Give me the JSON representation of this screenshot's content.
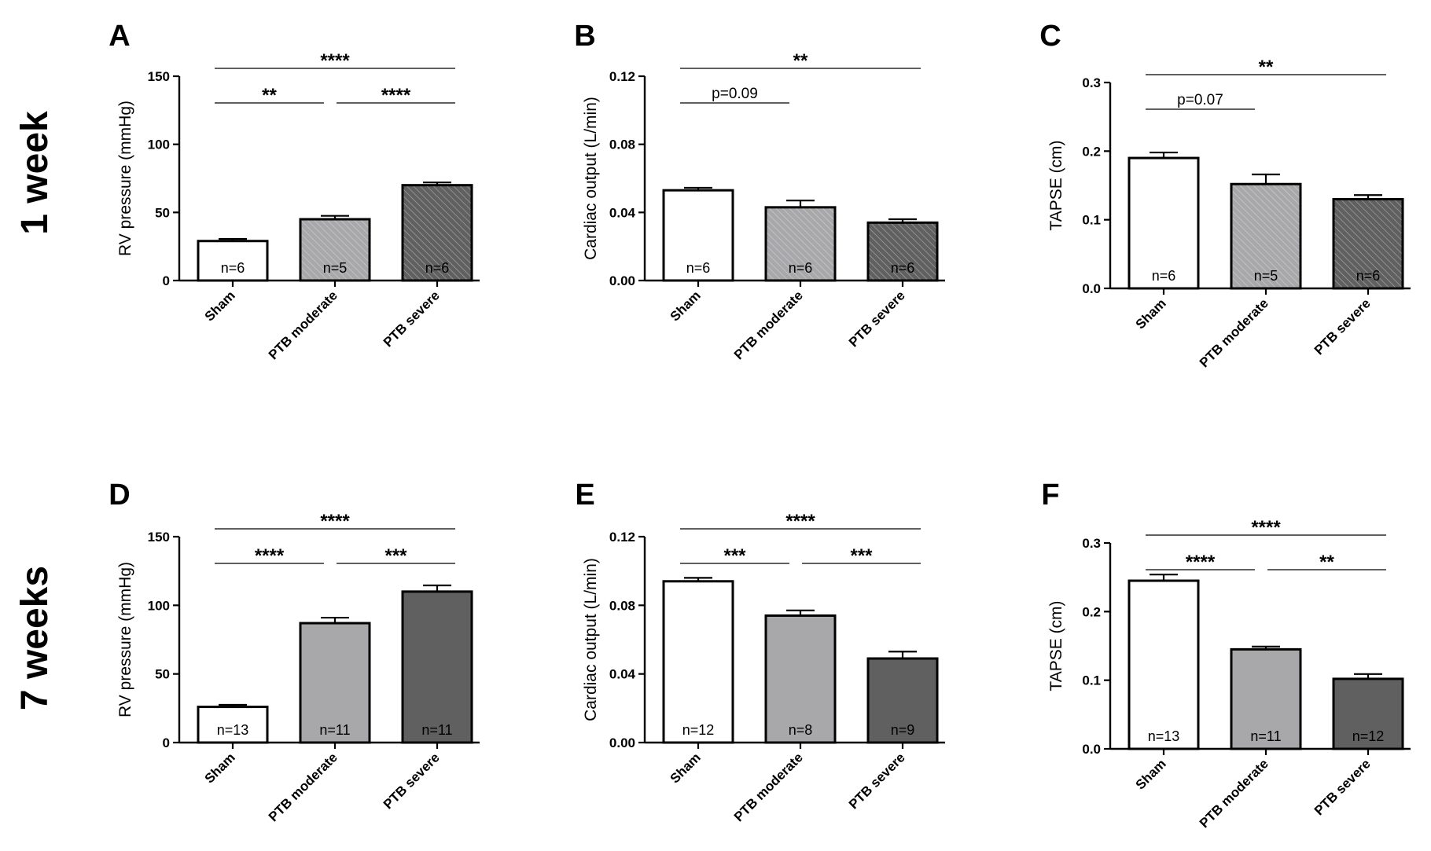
{
  "rows": [
    {
      "label": "1 week"
    },
    {
      "label": "7 weeks"
    }
  ],
  "colors": {
    "sham": "#ffffff",
    "moderate": "#a8a8ab",
    "severe": "#606060",
    "axis": "#000000",
    "hatch": "#ffffff"
  },
  "chart_data": [
    {
      "letter": "A",
      "type": "bar",
      "hatched": true,
      "categories": [
        "Sham",
        "PTB moderate",
        "PTB severe"
      ],
      "values": [
        29,
        45,
        70
      ],
      "errors": [
        1.5,
        2.5,
        2
      ],
      "n_labels": [
        "n=6",
        "n=5",
        "n=6"
      ],
      "ylabel": "RV pressure (mmHg)",
      "ylim": [
        0,
        150
      ],
      "yticks": [
        0,
        50,
        100,
        150
      ],
      "ytick_labels": [
        "0",
        "50",
        "100",
        "150"
      ],
      "comparisons": [
        {
          "from": 0,
          "to": 2,
          "label": "****",
          "level": 2
        },
        {
          "from": 0,
          "to": 1,
          "label": "**",
          "level": 1
        },
        {
          "from": 1,
          "to": 2,
          "label": "****",
          "level": 1
        }
      ]
    },
    {
      "letter": "B",
      "type": "bar",
      "hatched": true,
      "categories": [
        "Sham",
        "PTB moderate",
        "PTB severe"
      ],
      "values": [
        0.053,
        0.043,
        0.034
      ],
      "errors": [
        0.0015,
        0.004,
        0.002
      ],
      "n_labels": [
        "n=6",
        "n=6",
        "n=6"
      ],
      "ylabel": "Cardiac output (L/min)",
      "ylim": [
        0,
        0.12
      ],
      "yticks": [
        0,
        0.04,
        0.08,
        0.12
      ],
      "ytick_labels": [
        "0.00",
        "0.04",
        "0.08",
        "0.12"
      ],
      "comparisons": [
        {
          "from": 0,
          "to": 2,
          "label": "**",
          "level": 2
        },
        {
          "from": 0,
          "to": 1,
          "label": "p=0.09",
          "level": 1
        }
      ]
    },
    {
      "letter": "C",
      "type": "bar",
      "hatched": true,
      "categories": [
        "Sham",
        "PTB moderate",
        "PTB severe"
      ],
      "values": [
        0.19,
        0.152,
        0.13
      ],
      "errors": [
        0.008,
        0.014,
        0.006
      ],
      "n_labels": [
        "n=6",
        "n=5",
        "n=6"
      ],
      "ylabel": "TAPSE (cm)",
      "ylim": [
        0,
        0.3
      ],
      "yticks": [
        0,
        0.1,
        0.2,
        0.3
      ],
      "ytick_labels": [
        "0.0",
        "0.1",
        "0.2",
        "0.3"
      ],
      "comparisons": [
        {
          "from": 0,
          "to": 2,
          "label": "**",
          "level": 2
        },
        {
          "from": 0,
          "to": 1,
          "label": "p=0.07",
          "level": 1
        }
      ]
    },
    {
      "letter": "D",
      "type": "bar",
      "hatched": false,
      "categories": [
        "Sham",
        "PTB moderate",
        "PTB severe"
      ],
      "values": [
        26,
        87,
        110
      ],
      "errors": [
        1.5,
        4,
        4.5
      ],
      "n_labels": [
        "n=13",
        "n=11",
        "n=11"
      ],
      "ylabel": "RV pressure (mmHg)",
      "ylim": [
        0,
        150
      ],
      "yticks": [
        0,
        50,
        100,
        150
      ],
      "ytick_labels": [
        "0",
        "50",
        "100",
        "150"
      ],
      "comparisons": [
        {
          "from": 0,
          "to": 2,
          "label": "****",
          "level": 2
        },
        {
          "from": 0,
          "to": 1,
          "label": "****",
          "level": 1
        },
        {
          "from": 1,
          "to": 2,
          "label": "***",
          "level": 1
        }
      ]
    },
    {
      "letter": "E",
      "type": "bar",
      "hatched": false,
      "categories": [
        "Sham",
        "PTB moderate",
        "PTB severe"
      ],
      "values": [
        0.094,
        0.074,
        0.049
      ],
      "errors": [
        0.002,
        0.003,
        0.004
      ],
      "n_labels": [
        "n=12",
        "n=8",
        "n=9"
      ],
      "ylabel": "Cardiac output (L/min)",
      "ylim": [
        0,
        0.12
      ],
      "yticks": [
        0,
        0.04,
        0.08,
        0.12
      ],
      "ytick_labels": [
        "0.00",
        "0.04",
        "0.08",
        "0.12"
      ],
      "comparisons": [
        {
          "from": 0,
          "to": 2,
          "label": "****",
          "level": 2
        },
        {
          "from": 0,
          "to": 1,
          "label": "***",
          "level": 1
        },
        {
          "from": 1,
          "to": 2,
          "label": "***",
          "level": 1
        }
      ]
    },
    {
      "letter": "F",
      "type": "bar",
      "hatched": false,
      "categories": [
        "Sham",
        "PTB moderate",
        "PTB severe"
      ],
      "values": [
        0.245,
        0.145,
        0.102
      ],
      "errors": [
        0.009,
        0.004,
        0.007
      ],
      "n_labels": [
        "n=13",
        "n=11",
        "n=12"
      ],
      "ylabel": "TAPSE (cm)",
      "ylim": [
        0,
        0.3
      ],
      "yticks": [
        0,
        0.1,
        0.2,
        0.3
      ],
      "ytick_labels": [
        "0.0",
        "0.1",
        "0.2",
        "0.3"
      ],
      "comparisons": [
        {
          "from": 0,
          "to": 2,
          "label": "****",
          "level": 2
        },
        {
          "from": 0,
          "to": 1,
          "label": "****",
          "level": 1
        },
        {
          "from": 1,
          "to": 2,
          "label": "**",
          "level": 1
        }
      ]
    }
  ]
}
